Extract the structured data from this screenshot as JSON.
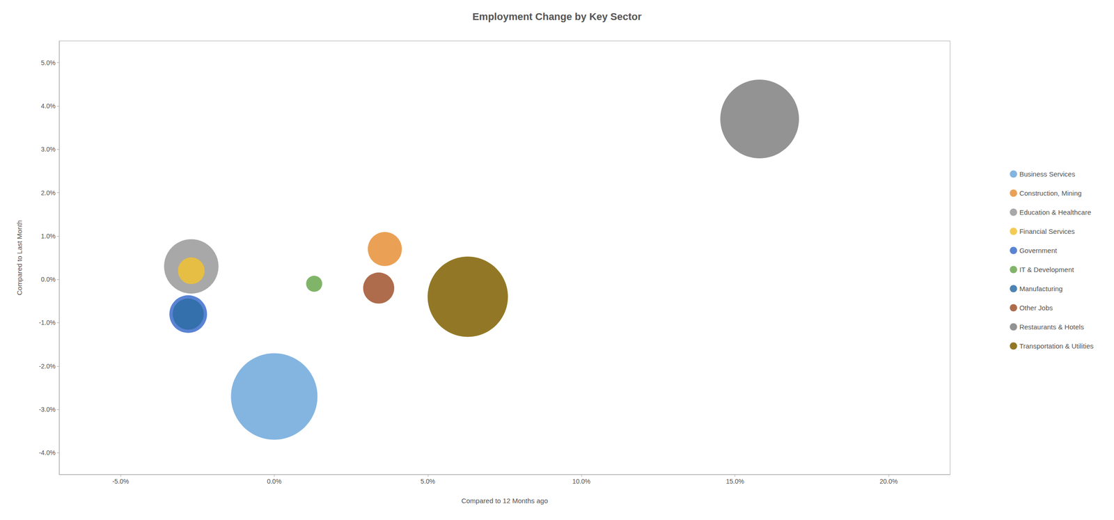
{
  "chart_data": {
    "type": "scatter",
    "title": "Employment Change by Key Sector",
    "xlabel": "Compared to 12 Months ago",
    "ylabel": "Compared to Last Month",
    "xlim": [
      -0.07,
      0.22
    ],
    "ylim": [
      -0.045,
      0.055
    ],
    "xticks": [
      {
        "value": -0.05,
        "label": "-5.0%"
      },
      {
        "value": 0.0,
        "label": "0.0%"
      },
      {
        "value": 0.05,
        "label": "5.0%"
      },
      {
        "value": 0.1,
        "label": "10.0%"
      },
      {
        "value": 0.15,
        "label": "15.0%"
      },
      {
        "value": 0.2,
        "label": "20.0%"
      }
    ],
    "yticks": [
      {
        "value": -0.04,
        "label": "-4.0%"
      },
      {
        "value": -0.03,
        "label": "-3.0%"
      },
      {
        "value": -0.02,
        "label": "-2.0%"
      },
      {
        "value": -0.01,
        "label": "-1.0%"
      },
      {
        "value": 0.0,
        "label": "0.0%"
      },
      {
        "value": 0.01,
        "label": "1.0%"
      },
      {
        "value": 0.02,
        "label": "2.0%"
      },
      {
        "value": 0.03,
        "label": "3.0%"
      },
      {
        "value": 0.04,
        "label": "4.0%"
      },
      {
        "value": 0.05,
        "label": "5.0%"
      }
    ],
    "series": [
      {
        "name": "Business Services",
        "color": "#6fa8dc",
        "x": [
          0.0
        ],
        "values": [
          -0.027
        ],
        "size": [
          580000
        ]
      },
      {
        "name": "Construction, Mining",
        "color": "#e69138",
        "x": [
          0.036
        ],
        "values": [
          0.007
        ],
        "size": [
          90000
        ]
      },
      {
        "name": "Education & Healthcare",
        "color": "#999999",
        "x": [
          -0.027
        ],
        "values": [
          0.003
        ],
        "size": [
          230000
        ]
      },
      {
        "name": "Financial Services",
        "color": "#f1c232",
        "x": [
          -0.027
        ],
        "values": [
          0.002
        ],
        "size": [
          55000
        ]
      },
      {
        "name": "Government",
        "color": "#3d6dcc",
        "x": [
          -0.028
        ],
        "values": [
          -0.008
        ],
        "size": [
          110000
        ]
      },
      {
        "name": "IT & Development",
        "color": "#6aa84f",
        "x": [
          0.013
        ],
        "values": [
          -0.001
        ],
        "size": [
          20000
        ]
      },
      {
        "name": "Manufacturing",
        "color": "#2e6da4",
        "x": [
          -0.028
        ],
        "values": [
          -0.008
        ],
        "size": [
          75000
        ]
      },
      {
        "name": "Other Jobs",
        "color": "#a0522d",
        "x": [
          0.034
        ],
        "values": [
          -0.002
        ],
        "size": [
          75000
        ]
      },
      {
        "name": "Restaurants & Hotels",
        "color": "#808080",
        "x": [
          0.158
        ],
        "values": [
          0.037
        ],
        "size": [
          480000
        ]
      },
      {
        "name": "Transportation & Utilities",
        "color": "#7f6000",
        "x": [
          0.063
        ],
        "values": [
          -0.004
        ],
        "size": [
          500000
        ]
      }
    ],
    "legend": "right",
    "grid": false
  }
}
